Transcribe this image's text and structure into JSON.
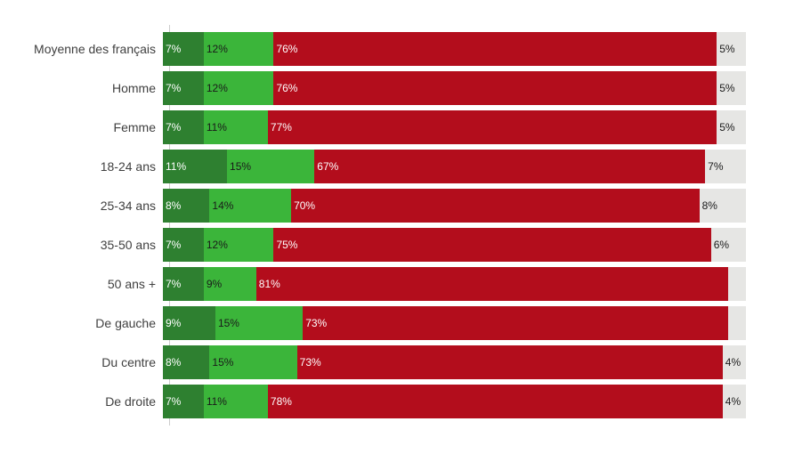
{
  "chart_data": {
    "type": "bar",
    "orientation": "horizontal",
    "stacked": true,
    "title": "",
    "xlabel": "",
    "ylabel": "",
    "xlim": [
      0,
      100
    ],
    "legend": "none",
    "grid": false,
    "value_label_format": "percent",
    "categories": [
      "Moyenne des français",
      "Homme",
      "Femme",
      "18-24 ans",
      "25-34 ans",
      "35-50 ans",
      "50 ans +",
      "De gauche",
      "Du centre",
      "De droite"
    ],
    "series": [
      {
        "name": "dark-green-segment",
        "color": "#2e8030",
        "values": [
          7,
          7,
          7,
          11,
          8,
          7,
          7,
          9,
          8,
          7
        ]
      },
      {
        "name": "light-green-segment",
        "color": "#3bb53a",
        "values": [
          12,
          12,
          11,
          15,
          14,
          12,
          9,
          15,
          15,
          11
        ]
      },
      {
        "name": "red-segment",
        "color": "#b30d1c",
        "values": [
          76,
          76,
          77,
          67,
          70,
          75,
          81,
          73,
          73,
          78
        ]
      },
      {
        "name": "gray-segment",
        "color": "#e6e6e4",
        "values": [
          5,
          5,
          5,
          7,
          8,
          6,
          3,
          3,
          4,
          4
        ]
      }
    ]
  },
  "style": {
    "background": "#ffffff",
    "axis_line_color": "#cccccc",
    "category_label_color": "#404040",
    "value_label_light": "#ffffff",
    "value_label_dark": "#1a1a1a",
    "label_text_style": [
      "light",
      "dark",
      "light",
      "dark"
    ]
  },
  "rows": [
    {
      "category": "Moyenne des français",
      "labels": [
        "7%",
        "12%",
        "76%",
        "5%"
      ]
    },
    {
      "category": "Homme",
      "labels": [
        "7%",
        "12%",
        "76%",
        "5%"
      ]
    },
    {
      "category": "Femme",
      "labels": [
        "7%",
        "11%",
        "77%",
        "5%"
      ]
    },
    {
      "category": "18-24 ans",
      "labels": [
        "11%",
        "15%",
        "67%",
        "7%"
      ]
    },
    {
      "category": "25-34 ans",
      "labels": [
        "8%",
        "14%",
        "70%",
        "8%"
      ]
    },
    {
      "category": "35-50 ans",
      "labels": [
        "7%",
        "12%",
        "75%",
        "6%"
      ]
    },
    {
      "category": "50 ans +",
      "labels": [
        "7%",
        "9%",
        "81%",
        ""
      ]
    },
    {
      "category": "De gauche",
      "labels": [
        "9%",
        "15%",
        "73%",
        ""
      ]
    },
    {
      "category": "Du centre",
      "labels": [
        "8%",
        "15%",
        "73%",
        "4%"
      ]
    },
    {
      "category": "De droite",
      "labels": [
        "7%",
        "11%",
        "78%",
        "4%"
      ]
    }
  ]
}
